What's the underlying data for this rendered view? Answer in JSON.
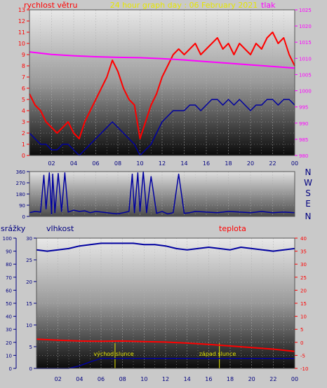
{
  "header": {
    "title": "24 hour graph day : 06 February 2021",
    "wind_label": "rychlost větru",
    "pressure_label": "tlak"
  },
  "labels": {
    "rain_label": "srážky",
    "humidity_label": "vlhkost",
    "temperature_label": "teplota",
    "sunrise_label": "východ slunce",
    "sunset_label": "západ slunce"
  },
  "compass": [
    "N",
    "W",
    "S",
    "E",
    "N"
  ],
  "colors": {
    "wind": "#ff0000",
    "gust": "#ff0000",
    "pressure": "#ff00ff",
    "direction": "#0000a0",
    "humidity": "#0000a0",
    "temperature": "#ff0000",
    "sun_marker": "#e6e600",
    "frame": "#0000a0",
    "axis_text": "#000080"
  },
  "chart_data": [
    {
      "id": "wind_pressure",
      "type": "line",
      "x_ticks": [
        "02",
        "04",
        "06",
        "08",
        "10",
        "12",
        "14",
        "16",
        "18",
        "20",
        "22",
        "00"
      ],
      "x_range_hours": [
        0,
        24
      ],
      "y_left_range": [
        0,
        13
      ],
      "y_left_ticks": [
        "0",
        "1",
        "2",
        "3",
        "4",
        "5",
        "6",
        "7",
        "8",
        "9",
        "10",
        "11",
        "12",
        "13"
      ],
      "y_right_range": [
        980,
        1025
      ],
      "y_right_ticks": [
        "980",
        "985",
        "990",
        "995",
        "1000",
        "1005",
        "1010",
        "1015",
        "1020",
        "1025"
      ],
      "series": [
        {
          "id": "gust",
          "color": "#ff0000",
          "x": [
            0,
            0.5,
            1,
            1.5,
            2,
            2.5,
            3,
            3.5,
            4,
            4.5,
            5,
            5.5,
            6,
            6.5,
            7,
            7.5,
            8,
            8.5,
            9,
            9.5,
            10,
            10.5,
            11,
            11.5,
            12,
            12.5,
            13,
            13.5,
            14,
            14.5,
            15,
            15.5,
            16,
            16.5,
            17,
            17.5,
            18,
            18.5,
            19,
            19.5,
            20,
            20.5,
            21,
            21.5,
            22,
            22.5,
            23,
            23.5,
            24
          ],
          "y": [
            5.5,
            4.5,
            4,
            3,
            2.5,
            2,
            2.5,
            3,
            2,
            1.5,
            3,
            4,
            5,
            6,
            7,
            8.5,
            7.5,
            6,
            5,
            4.5,
            1.5,
            3,
            4.5,
            5.5,
            7,
            8,
            9,
            9.5,
            9,
            9.5,
            10,
            9,
            9.5,
            10,
            10.5,
            9.5,
            10,
            9,
            10,
            9.5,
            9,
            10,
            9.5,
            10.5,
            11,
            10,
            10.5,
            9,
            8
          ]
        },
        {
          "id": "wind",
          "color": "#0000a0",
          "x": [
            0,
            0.5,
            1,
            1.5,
            2,
            2.5,
            3,
            3.5,
            4,
            4.5,
            5,
            5.5,
            6,
            6.5,
            7,
            7.5,
            8,
            8.5,
            9,
            9.5,
            10,
            10.5,
            11,
            11.5,
            12,
            12.5,
            13,
            13.5,
            14,
            14.5,
            15,
            15.5,
            16,
            16.5,
            17,
            17.5,
            18,
            18.5,
            19,
            19.5,
            20,
            20.5,
            21,
            21.5,
            22,
            22.5,
            23,
            23.5,
            24
          ],
          "y": [
            2,
            1.5,
            1,
            1,
            0.5,
            0.5,
            1,
            1,
            0.5,
            0,
            0.5,
            1,
            1.5,
            2,
            2.5,
            3,
            2.5,
            2,
            1.5,
            1,
            0,
            0.5,
            1,
            2,
            3,
            3.5,
            4,
            4,
            4,
            4.5,
            4.5,
            4,
            4.5,
            5,
            5,
            4.5,
            5,
            4.5,
            5,
            4.5,
            4,
            4.5,
            4.5,
            5,
            5,
            4.5,
            5,
            5,
            4.5
          ]
        },
        {
          "id": "pressure",
          "color": "#ff00ff",
          "axis": "right",
          "x": [
            0,
            2,
            4,
            6,
            8,
            10,
            12,
            14,
            16,
            18,
            20,
            22,
            24
          ],
          "y": [
            1012,
            1011.2,
            1010.8,
            1010.5,
            1010.3,
            1010.2,
            1009.9,
            1009.5,
            1009,
            1008.5,
            1008,
            1007.5,
            1007
          ]
        }
      ]
    },
    {
      "id": "direction",
      "type": "line",
      "x_range_hours": [
        0,
        24
      ],
      "y_range": [
        0,
        360
      ],
      "y_ticks": [
        "0",
        "90",
        "180",
        "270",
        "360"
      ],
      "series": [
        {
          "id": "direction",
          "color": "#0000a0",
          "x": [
            0,
            0.5,
            1,
            1.3,
            1.5,
            1.8,
            2,
            2.1,
            2.3,
            2.6,
            2.9,
            3.2,
            3.5,
            4,
            4.5,
            5,
            5.5,
            6,
            6.5,
            7,
            7.5,
            8,
            8.5,
            9,
            9.3,
            9.5,
            9.8,
            10,
            10.3,
            10.6,
            11,
            11.5,
            12,
            12.5,
            13,
            13.5,
            14,
            14.5,
            15,
            16,
            17,
            18,
            19,
            20,
            21,
            22,
            23,
            24
          ],
          "y": [
            30,
            40,
            35,
            330,
            60,
            350,
            20,
            340,
            30,
            345,
            40,
            350,
            35,
            50,
            40,
            45,
            30,
            40,
            35,
            30,
            25,
            20,
            30,
            40,
            340,
            30,
            350,
            40,
            360,
            30,
            320,
            25,
            40,
            20,
            30,
            340,
            25,
            30,
            40,
            35,
            30,
            40,
            35,
            30,
            40,
            30,
            35,
            30
          ]
        }
      ]
    },
    {
      "id": "humidity_temperature_rain",
      "type": "line",
      "x_ticks": [
        "02",
        "04",
        "06",
        "08",
        "10",
        "12",
        "14",
        "16",
        "18",
        "20",
        "22",
        "00"
      ],
      "x_range_hours": [
        0,
        24
      ],
      "rain_range": [
        0,
        100
      ],
      "rain_ticks": [
        "0",
        "10",
        "20",
        "30",
        "40",
        "50",
        "60",
        "70",
        "80",
        "90",
        "100"
      ],
      "humidity_range": [
        0,
        30
      ],
      "humidity_ticks": [
        "0",
        "5",
        "10",
        "15",
        "20",
        "25",
        "30"
      ],
      "temperature_range": [
        -10,
        40
      ],
      "temperature_ticks": [
        "-10",
        "-5",
        "0",
        "5",
        "10",
        "15",
        "20",
        "25",
        "30",
        "35",
        "40"
      ],
      "sunrise_hour": 7.3,
      "sunset_hour": 17.0,
      "series": [
        {
          "id": "humidity",
          "color": "#0000a0",
          "axis": "rain",
          "x": [
            0,
            1,
            2,
            3,
            4,
            5,
            6,
            7,
            8,
            9,
            10,
            11,
            12,
            13,
            14,
            15,
            16,
            17,
            18,
            19,
            20,
            21,
            22,
            23,
            24
          ],
          "y": [
            91,
            90,
            91,
            92,
            94,
            95,
            96,
            96,
            96,
            96,
            95,
            95,
            94,
            92,
            91,
            92,
            93,
            92,
            91,
            93,
            92,
            91,
            90,
            91,
            92
          ]
        },
        {
          "id": "temperature",
          "color": "#ff0000",
          "axis": "temperature",
          "x": [
            0,
            2,
            4,
            6,
            8,
            10,
            12,
            14,
            16,
            18,
            20,
            22,
            24
          ],
          "y": [
            1.2,
            0.8,
            0.5,
            0.4,
            0.5,
            0.3,
            0.1,
            -0.3,
            -0.8,
            -1.4,
            -2,
            -2.6,
            -3.5
          ]
        },
        {
          "id": "rain",
          "color": "#0000a0",
          "axis": "humidity",
          "x": [
            0,
            3,
            4,
            5,
            6,
            24
          ],
          "y": [
            0,
            0,
            0.6,
            1.5,
            2.3,
            2.3
          ]
        }
      ]
    }
  ]
}
